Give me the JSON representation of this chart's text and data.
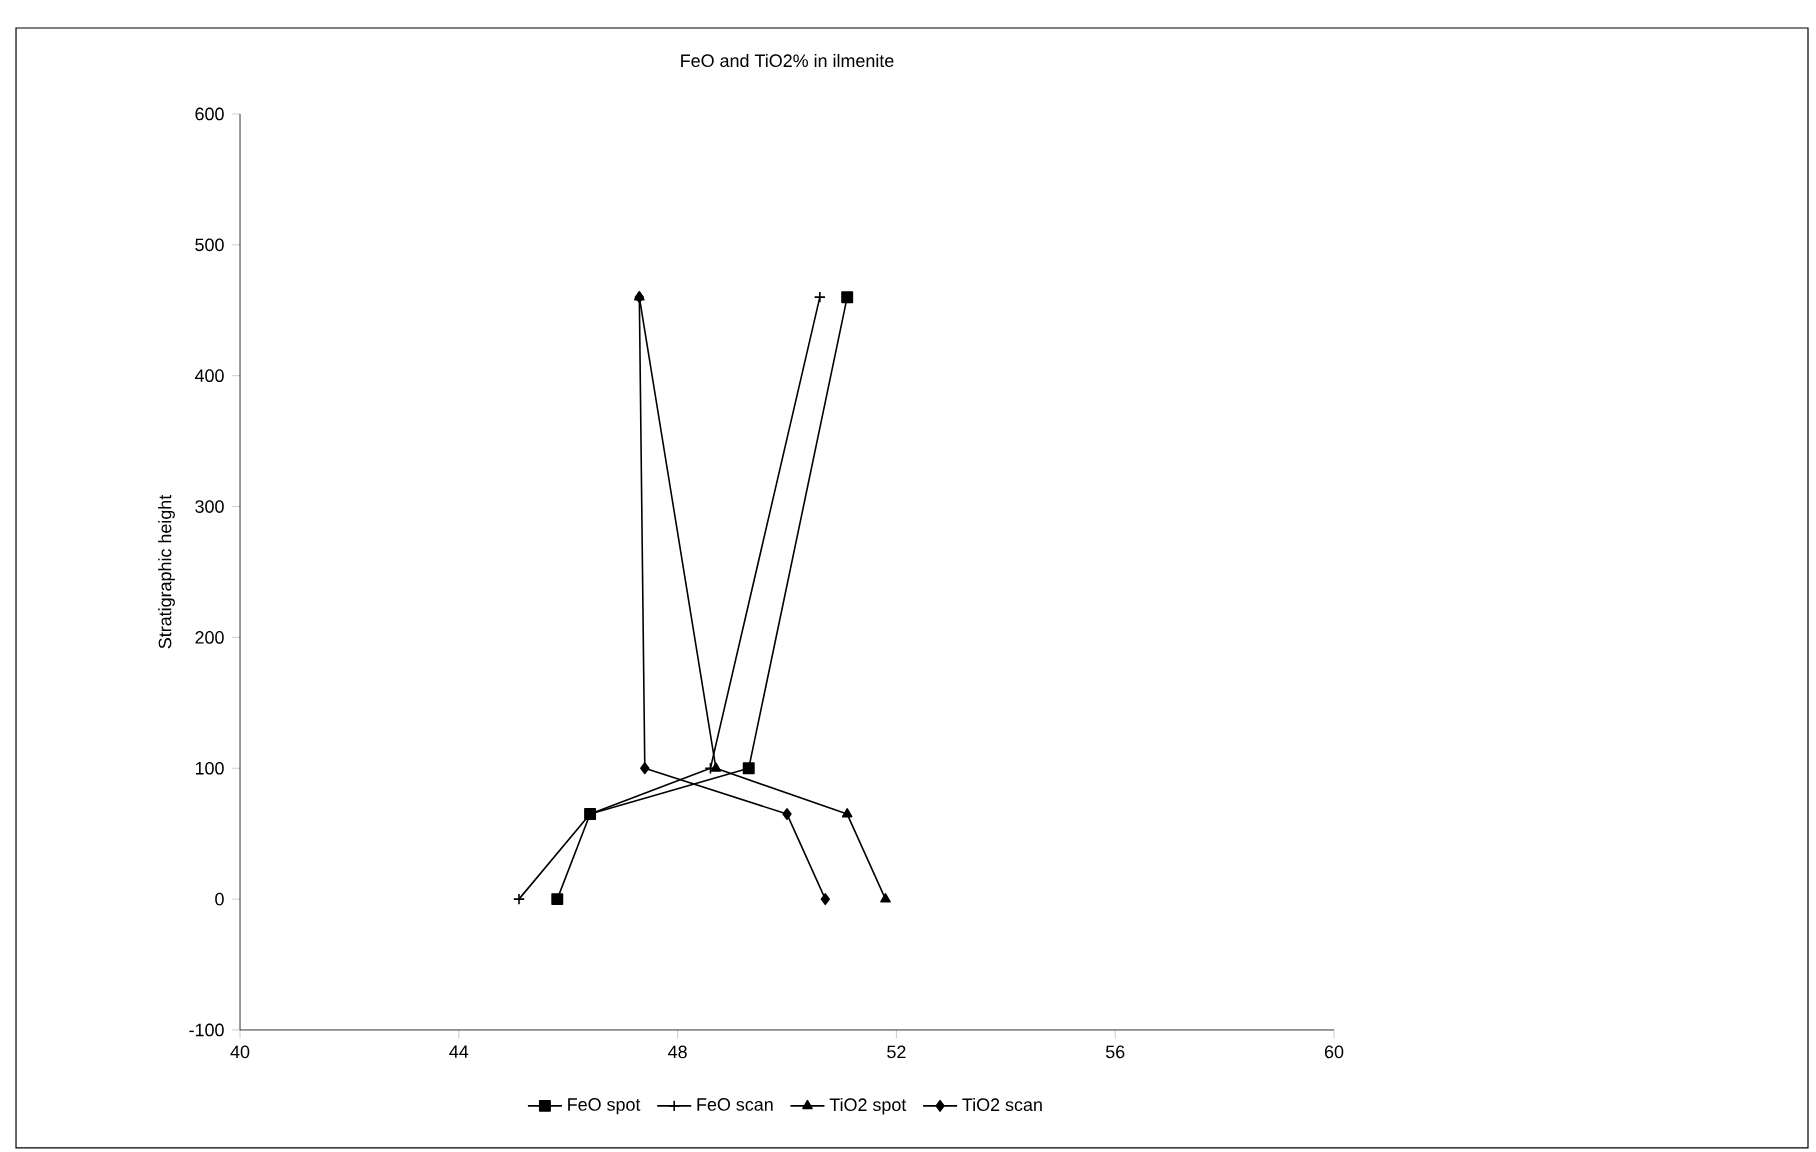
{
  "chart_data": {
    "type": "line",
    "title": "FeO and TiO2% in ilmenite",
    "ylabel": "Stratigraphic height",
    "xlim": [
      40,
      60
    ],
    "xticks": [
      40,
      44,
      48,
      52,
      56,
      60
    ],
    "ylim": [
      -100,
      600
    ],
    "yticks": [
      -100,
      0,
      100,
      200,
      300,
      400,
      500,
      600
    ],
    "grid": false,
    "legend": "bottom",
    "line_style": "solid",
    "series": [
      {
        "name": "FeO spot",
        "color": "#000000",
        "marker": "square",
        "x": [
          45.8,
          46.4,
          49.3,
          51.1
        ],
        "values": [
          0,
          65,
          100,
          460
        ]
      },
      {
        "name": "FeO scan",
        "color": "#000000",
        "marker": "cross",
        "x": [
          45.1,
          46.4,
          48.6,
          50.6
        ],
        "values": [
          0,
          65,
          100,
          460
        ]
      },
      {
        "name": "TiO2 spot",
        "color": "#000000",
        "marker": "triangle",
        "x": [
          51.8,
          51.1,
          48.7,
          47.3
        ],
        "values": [
          0,
          65,
          100,
          460
        ]
      },
      {
        "name": "TiO2 scan",
        "color": "#000000",
        "marker": "diamond",
        "x": [
          50.7,
          50.0,
          47.4,
          47.3
        ],
        "values": [
          0,
          65,
          100,
          460
        ]
      }
    ]
  }
}
